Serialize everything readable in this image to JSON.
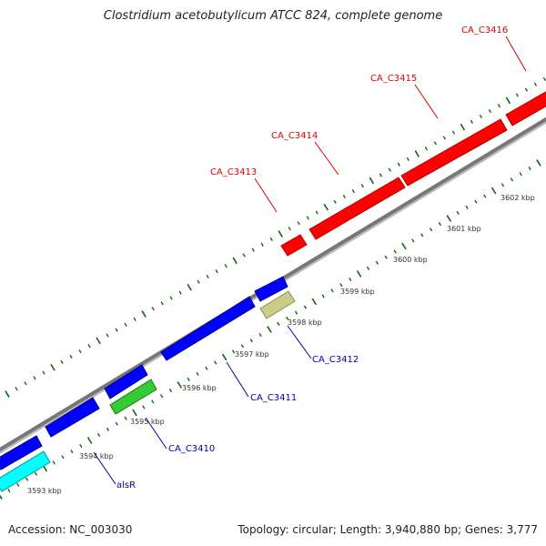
{
  "header": {
    "title": "Clostridium acetobutylicum ATCC 824, complete genome"
  },
  "footer": {
    "accession": "Accession: NC_003030",
    "topology": "Topology: circular; Length: 3,940,880 bp; Genes: 3,777"
  },
  "colors": {
    "forward_gene": "#ff0000",
    "reverse_gene": "#0000ff",
    "alsR_gene": "#00ffff",
    "ca_c3410_gene": "#33cc33",
    "ca_c3412_gene": "#cccc88",
    "backbone": "#777777",
    "tick": "#116611",
    "forward_label": "#dd0000",
    "reverse_label": "#0000aa"
  },
  "scale": {
    "ticks": [
      "3593 kbp",
      "3594 kbp",
      "3595 kbp",
      "3596 kbp",
      "3597 kbp",
      "3598 kbp",
      "3599 kbp",
      "3600 kbp",
      "3601 kbp",
      "3602 kbp"
    ]
  },
  "genes": {
    "forward": [
      "CA_C3413",
      "CA_C3414",
      "CA_C3415",
      "CA_C3416"
    ],
    "reverse": [
      "alsR",
      "CA_C3410",
      "CA_C3411",
      "CA_C3412"
    ]
  }
}
